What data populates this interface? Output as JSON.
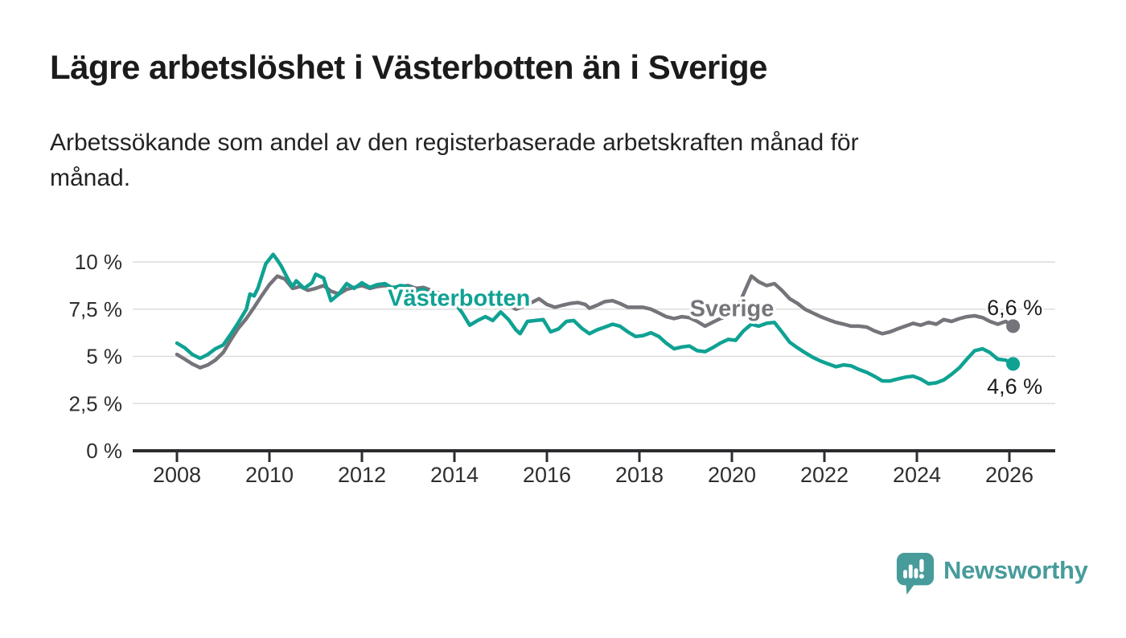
{
  "page": {
    "title": "Lägre arbetslöshet i Västerbotten än i Sverige",
    "subtitle_lines": [
      "Arbetssökande som andel av den registerbaserade arbetskraften månad för",
      "månad."
    ]
  },
  "branding": {
    "logo_text": "Newsworthy",
    "logo_icon": "speech-bubble-bar-chart-icon",
    "logo_color": "#489b9b"
  },
  "chart_data": {
    "type": "line",
    "title": "Lägre arbetslöshet i Västerbotten än i Sverige",
    "xlabel": "",
    "ylabel": "",
    "x_axis": {
      "ticks": [
        2008,
        2010,
        2012,
        2014,
        2016,
        2018,
        2020,
        2022,
        2024,
        2026
      ],
      "tick_labels": [
        "2008",
        "2010",
        "2012",
        "2014",
        "2016",
        "2018",
        "2020",
        "2022",
        "2024",
        "2026"
      ],
      "range": [
        2007.05,
        2027.0
      ]
    },
    "y_axis": {
      "tick_values": [
        0,
        2.5,
        5,
        7.5,
        10
      ],
      "tick_labels": [
        "0 %",
        "2,5 %",
        "5 %",
        "7,5 %",
        "10 %"
      ],
      "range": [
        0,
        10.75
      ],
      "grid": true
    },
    "colors": {
      "grid": "#dcdcdc",
      "axis": "#2c2c2f",
      "tick_label": "#2e2e2e",
      "end_label": "#1c1c1c"
    },
    "series": [
      {
        "name": "Sverige",
        "color": "#74747a",
        "end_label": "6,6 %",
        "end_value": 6.6,
        "end_label_side": "above",
        "label_anchor": {
          "x": 2020.0,
          "y": 7.55
        },
        "points": [
          [
            2008.0,
            5.1
          ],
          [
            2008.17,
            4.85
          ],
          [
            2008.33,
            4.6
          ],
          [
            2008.5,
            4.4
          ],
          [
            2008.67,
            4.55
          ],
          [
            2008.83,
            4.8
          ],
          [
            2009.0,
            5.2
          ],
          [
            2009.17,
            5.9
          ],
          [
            2009.33,
            6.5
          ],
          [
            2009.5,
            7.0
          ],
          [
            2009.67,
            7.6
          ],
          [
            2009.83,
            8.2
          ],
          [
            2010.0,
            8.8
          ],
          [
            2010.17,
            9.25
          ],
          [
            2010.33,
            9.1
          ],
          [
            2010.5,
            8.6
          ],
          [
            2010.67,
            8.7
          ],
          [
            2010.83,
            8.5
          ],
          [
            2011.0,
            8.6
          ],
          [
            2011.17,
            8.75
          ],
          [
            2011.33,
            8.45
          ],
          [
            2011.5,
            8.3
          ],
          [
            2011.67,
            8.55
          ],
          [
            2011.83,
            8.65
          ],
          [
            2012.0,
            8.75
          ],
          [
            2012.17,
            8.6
          ],
          [
            2012.33,
            8.7
          ],
          [
            2012.5,
            8.75
          ],
          [
            2012.67,
            8.65
          ],
          [
            2012.83,
            8.7
          ],
          [
            2013.0,
            8.75
          ],
          [
            2013.17,
            8.6
          ],
          [
            2013.33,
            8.65
          ],
          [
            2013.5,
            8.5
          ],
          [
            2013.67,
            8.35
          ],
          [
            2013.83,
            8.2
          ],
          [
            2014.0,
            8.1
          ],
          [
            2014.17,
            7.95
          ],
          [
            2014.33,
            7.9
          ],
          [
            2014.5,
            7.85
          ],
          [
            2014.67,
            7.9
          ],
          [
            2014.83,
            7.85
          ],
          [
            2015.0,
            7.85
          ],
          [
            2015.17,
            7.7
          ],
          [
            2015.33,
            7.5
          ],
          [
            2015.5,
            7.65
          ],
          [
            2015.67,
            7.85
          ],
          [
            2015.83,
            8.05
          ],
          [
            2016.0,
            7.75
          ],
          [
            2016.17,
            7.6
          ],
          [
            2016.33,
            7.7
          ],
          [
            2016.5,
            7.8
          ],
          [
            2016.67,
            7.85
          ],
          [
            2016.83,
            7.75
          ],
          [
            2016.92,
            7.55
          ],
          [
            2017.08,
            7.7
          ],
          [
            2017.25,
            7.9
          ],
          [
            2017.42,
            7.95
          ],
          [
            2017.58,
            7.8
          ],
          [
            2017.75,
            7.6
          ],
          [
            2017.92,
            7.6
          ],
          [
            2018.08,
            7.6
          ],
          [
            2018.25,
            7.5
          ],
          [
            2018.42,
            7.3
          ],
          [
            2018.58,
            7.1
          ],
          [
            2018.75,
            7.0
          ],
          [
            2018.92,
            7.1
          ],
          [
            2019.08,
            7.05
          ],
          [
            2019.25,
            6.85
          ],
          [
            2019.42,
            6.6
          ],
          [
            2019.58,
            6.8
          ],
          [
            2019.75,
            7.0
          ],
          [
            2019.92,
            7.15
          ],
          [
            2020.08,
            7.3
          ],
          [
            2020.25,
            8.3
          ],
          [
            2020.42,
            9.25
          ],
          [
            2020.5,
            9.1
          ],
          [
            2020.58,
            8.95
          ],
          [
            2020.75,
            8.75
          ],
          [
            2020.92,
            8.85
          ],
          [
            2021.08,
            8.5
          ],
          [
            2021.25,
            8.05
          ],
          [
            2021.42,
            7.8
          ],
          [
            2021.58,
            7.5
          ],
          [
            2021.75,
            7.3
          ],
          [
            2021.92,
            7.1
          ],
          [
            2022.08,
            6.95
          ],
          [
            2022.25,
            6.8
          ],
          [
            2022.42,
            6.7
          ],
          [
            2022.58,
            6.6
          ],
          [
            2022.75,
            6.6
          ],
          [
            2022.92,
            6.55
          ],
          [
            2023.08,
            6.35
          ],
          [
            2023.25,
            6.2
          ],
          [
            2023.42,
            6.3
          ],
          [
            2023.58,
            6.45
          ],
          [
            2023.75,
            6.6
          ],
          [
            2023.92,
            6.75
          ],
          [
            2024.08,
            6.65
          ],
          [
            2024.25,
            6.8
          ],
          [
            2024.42,
            6.7
          ],
          [
            2024.58,
            6.95
          ],
          [
            2024.75,
            6.85
          ],
          [
            2024.92,
            7.0
          ],
          [
            2025.08,
            7.1
          ],
          [
            2025.25,
            7.15
          ],
          [
            2025.42,
            7.05
          ],
          [
            2025.58,
            6.85
          ],
          [
            2025.75,
            6.7
          ],
          [
            2025.92,
            6.85
          ],
          [
            2026.08,
            6.6
          ]
        ]
      },
      {
        "name": "Västerbotten",
        "color": "#0fa293",
        "end_label": "4,6 %",
        "end_value": 4.6,
        "end_label_side": "below",
        "label_anchor": {
          "x": 2014.1,
          "y": 8.1
        },
        "points": [
          [
            2008.0,
            5.7
          ],
          [
            2008.17,
            5.45
          ],
          [
            2008.33,
            5.1
          ],
          [
            2008.5,
            4.9
          ],
          [
            2008.67,
            5.1
          ],
          [
            2008.83,
            5.4
          ],
          [
            2009.0,
            5.6
          ],
          [
            2009.17,
            6.2
          ],
          [
            2009.33,
            6.8
          ],
          [
            2009.5,
            7.5
          ],
          [
            2009.58,
            8.3
          ],
          [
            2009.67,
            8.2
          ],
          [
            2009.75,
            8.6
          ],
          [
            2009.92,
            9.9
          ],
          [
            2010.08,
            10.4
          ],
          [
            2010.17,
            10.1
          ],
          [
            2010.25,
            9.8
          ],
          [
            2010.42,
            9.0
          ],
          [
            2010.5,
            8.7
          ],
          [
            2010.58,
            9.0
          ],
          [
            2010.75,
            8.6
          ],
          [
            2010.92,
            8.9
          ],
          [
            2011.0,
            9.35
          ],
          [
            2011.17,
            9.15
          ],
          [
            2011.33,
            7.95
          ],
          [
            2011.5,
            8.3
          ],
          [
            2011.67,
            8.85
          ],
          [
            2011.83,
            8.6
          ],
          [
            2012.0,
            8.9
          ],
          [
            2012.17,
            8.65
          ],
          [
            2012.33,
            8.8
          ],
          [
            2012.5,
            8.85
          ],
          [
            2012.67,
            8.6
          ],
          [
            2012.83,
            8.75
          ],
          [
            2013.0,
            8.7
          ],
          [
            2013.17,
            8.45
          ],
          [
            2013.33,
            8.55
          ],
          [
            2013.5,
            8.25
          ],
          [
            2013.67,
            8.3
          ],
          [
            2013.83,
            8.0
          ],
          [
            2014.0,
            7.85
          ],
          [
            2014.17,
            7.3
          ],
          [
            2014.33,
            6.65
          ],
          [
            2014.5,
            6.9
          ],
          [
            2014.67,
            7.1
          ],
          [
            2014.83,
            6.9
          ],
          [
            2015.0,
            7.35
          ],
          [
            2015.17,
            6.95
          ],
          [
            2015.33,
            6.4
          ],
          [
            2015.42,
            6.2
          ],
          [
            2015.58,
            6.85
          ],
          [
            2015.75,
            6.9
          ],
          [
            2015.92,
            6.95
          ],
          [
            2016.08,
            6.3
          ],
          [
            2016.25,
            6.45
          ],
          [
            2016.42,
            6.85
          ],
          [
            2016.58,
            6.9
          ],
          [
            2016.75,
            6.5
          ],
          [
            2016.92,
            6.2
          ],
          [
            2017.08,
            6.4
          ],
          [
            2017.25,
            6.55
          ],
          [
            2017.42,
            6.7
          ],
          [
            2017.58,
            6.6
          ],
          [
            2017.75,
            6.3
          ],
          [
            2017.92,
            6.05
          ],
          [
            2018.08,
            6.1
          ],
          [
            2018.25,
            6.25
          ],
          [
            2018.42,
            6.05
          ],
          [
            2018.58,
            5.7
          ],
          [
            2018.75,
            5.4
          ],
          [
            2018.92,
            5.5
          ],
          [
            2019.08,
            5.55
          ],
          [
            2019.25,
            5.3
          ],
          [
            2019.42,
            5.25
          ],
          [
            2019.58,
            5.45
          ],
          [
            2019.75,
            5.7
          ],
          [
            2019.92,
            5.9
          ],
          [
            2020.08,
            5.85
          ],
          [
            2020.25,
            6.35
          ],
          [
            2020.42,
            6.7
          ],
          [
            2020.58,
            6.6
          ],
          [
            2020.75,
            6.75
          ],
          [
            2020.92,
            6.8
          ],
          [
            2021.08,
            6.3
          ],
          [
            2021.25,
            5.75
          ],
          [
            2021.42,
            5.45
          ],
          [
            2021.58,
            5.2
          ],
          [
            2021.75,
            4.95
          ],
          [
            2021.92,
            4.75
          ],
          [
            2022.08,
            4.6
          ],
          [
            2022.25,
            4.45
          ],
          [
            2022.42,
            4.55
          ],
          [
            2022.58,
            4.5
          ],
          [
            2022.75,
            4.3
          ],
          [
            2022.92,
            4.15
          ],
          [
            2023.08,
            3.95
          ],
          [
            2023.25,
            3.7
          ],
          [
            2023.42,
            3.7
          ],
          [
            2023.58,
            3.8
          ],
          [
            2023.75,
            3.9
          ],
          [
            2023.92,
            3.95
          ],
          [
            2024.08,
            3.8
          ],
          [
            2024.25,
            3.55
          ],
          [
            2024.42,
            3.6
          ],
          [
            2024.58,
            3.75
          ],
          [
            2024.75,
            4.05
          ],
          [
            2024.92,
            4.4
          ],
          [
            2025.08,
            4.85
          ],
          [
            2025.25,
            5.3
          ],
          [
            2025.42,
            5.4
          ],
          [
            2025.58,
            5.2
          ],
          [
            2025.75,
            4.85
          ],
          [
            2025.92,
            4.8
          ],
          [
            2026.08,
            4.6
          ]
        ]
      }
    ]
  }
}
